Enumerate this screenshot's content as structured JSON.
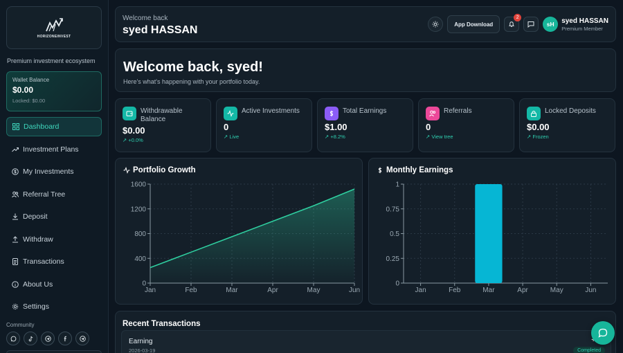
{
  "brand": {
    "logo_text": "HORIZONEINVEST",
    "tagline": "Premium investment ecosystem"
  },
  "wallet": {
    "label": "Wallet Balance",
    "amount": "$0.00",
    "locked": "Locked: $0.00"
  },
  "nav": {
    "items": [
      {
        "label": "Dashboard",
        "icon": "grid-icon",
        "active": true
      },
      {
        "label": "Investment Plans",
        "icon": "trending-up-icon"
      },
      {
        "label": "My Investments",
        "icon": "dollar-circle-icon"
      },
      {
        "label": "Referral Tree",
        "icon": "users-icon"
      },
      {
        "label": "Deposit",
        "icon": "download-icon"
      },
      {
        "label": "Withdraw",
        "icon": "upload-icon"
      },
      {
        "label": "Transactions",
        "icon": "document-icon"
      },
      {
        "label": "About Us",
        "icon": "info-icon"
      },
      {
        "label": "Settings",
        "icon": "gear-icon"
      }
    ]
  },
  "community": {
    "label": "Community",
    "icons": [
      "whatsapp-icon",
      "tiktok-icon",
      "telegram-icon",
      "facebook-icon",
      "telegram-icon"
    ]
  },
  "header": {
    "welcome": "Welcome back",
    "user_name": "syed HASSAN",
    "app_download": "App Download",
    "notification_count": "2",
    "avatar_initials": "sH",
    "profile_name": "syed HASSAN",
    "profile_role": "Premium Member"
  },
  "banner": {
    "title": "Welcome back, syed!",
    "subtitle": "Here's what's happening with your portfolio today."
  },
  "stats": [
    {
      "label": "Withdrawable Balance",
      "value": "$0.00",
      "sub": "+0.0%",
      "color": "#14b8a6"
    },
    {
      "label": "Active Investments",
      "value": "0",
      "sub": "Live",
      "color": "#14b8a6"
    },
    {
      "label": "Total Earnings",
      "value": "$1.00",
      "sub": "+8.2%",
      "color": "#8b5cf6"
    },
    {
      "label": "Referrals",
      "value": "0",
      "sub": "View tree",
      "color": "#ec4899"
    },
    {
      "label": "Locked Deposits",
      "value": "$0.00",
      "sub": "Frozen",
      "color": "#14b8a6"
    }
  ],
  "charts": {
    "portfolio_title": "Portfolio Growth",
    "monthly_title": "Monthly Earnings"
  },
  "chart_data": [
    {
      "type": "area",
      "title": "Portfolio Growth",
      "categories": [
        "Jan",
        "Feb",
        "Mar",
        "Apr",
        "May",
        "Jun"
      ],
      "values": [
        250,
        500,
        750,
        1000,
        1250,
        1520
      ],
      "yticks": [
        0,
        400,
        800,
        1200,
        1600
      ],
      "ylim": [
        0,
        1600
      ],
      "grid": true,
      "color": "#2fcfa0"
    },
    {
      "type": "bar",
      "title": "Monthly Earnings",
      "categories": [
        "Jan",
        "Feb",
        "Mar",
        "Apr",
        "May",
        "Jun"
      ],
      "values": [
        0,
        0,
        1,
        0,
        0,
        0
      ],
      "yticks": [
        0,
        0.25,
        0.5,
        0.75,
        1
      ],
      "ylim": [
        0,
        1
      ],
      "grid": true,
      "color": "#06b6d4"
    }
  ],
  "transactions": {
    "title": "Recent Transactions",
    "rows": [
      {
        "type": "Earning",
        "date": "2026-03-19",
        "amount": "+$1.",
        "status": "Completed"
      }
    ]
  }
}
